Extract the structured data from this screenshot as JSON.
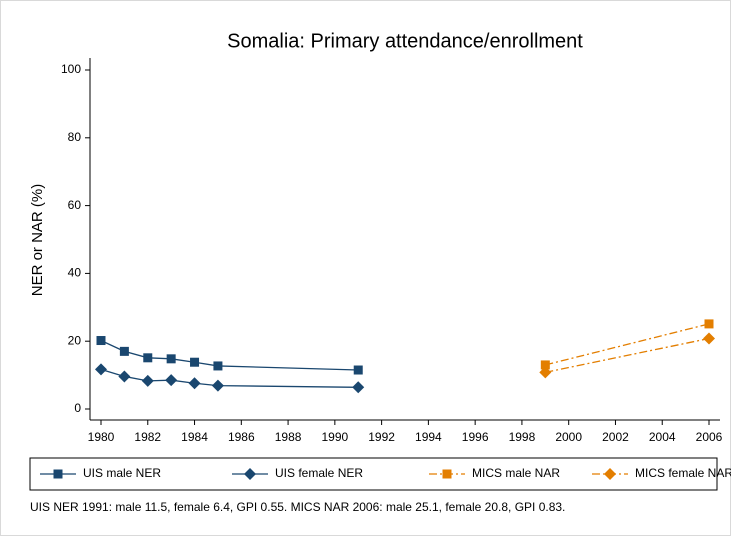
{
  "chart_data": {
    "type": "line",
    "title": "Somalia: Primary attendance/enrollment",
    "y_label": "NER or NAR (%)",
    "note": "UIS NER 1991: male 11.5, female 6.4, GPI 0.55. MICS NAR 2006: male 25.1, female 20.8, GPI 0.83.",
    "xlim": [
      1980,
      2006
    ],
    "xticks": [
      1980,
      1982,
      1984,
      1986,
      1988,
      1990,
      1992,
      1994,
      1996,
      1998,
      2000,
      2002,
      2004,
      2006
    ],
    "ylim": [
      0,
      100
    ],
    "yticks": [
      0,
      20,
      40,
      60,
      80,
      100
    ],
    "legend": "bottom",
    "series": [
      {
        "name": "UIS male NER",
        "color": "#1a476f",
        "marker": "square",
        "dash": "solid",
        "x": [
          1980,
          1981,
          1982,
          1983,
          1984,
          1985,
          1991
        ],
        "values": [
          20.2,
          17.0,
          15.1,
          14.8,
          13.8,
          12.7,
          11.5
        ]
      },
      {
        "name": "UIS female NER",
        "color": "#1a476f",
        "marker": "diamond",
        "dash": "solid",
        "x": [
          1980,
          1981,
          1982,
          1983,
          1984,
          1985,
          1991
        ],
        "values": [
          11.7,
          9.6,
          8.3,
          8.5,
          7.6,
          6.9,
          6.4
        ]
      },
      {
        "name": "MICS male NAR",
        "color": "#e37e00",
        "marker": "square",
        "dash": "dashdot",
        "x": [
          1999,
          2006
        ],
        "values": [
          13.0,
          25.1
        ]
      },
      {
        "name": "MICS female NAR",
        "color": "#e37e00",
        "marker": "diamond",
        "dash": "dashdot",
        "x": [
          1999,
          2006
        ],
        "values": [
          10.8,
          20.8
        ]
      }
    ]
  }
}
